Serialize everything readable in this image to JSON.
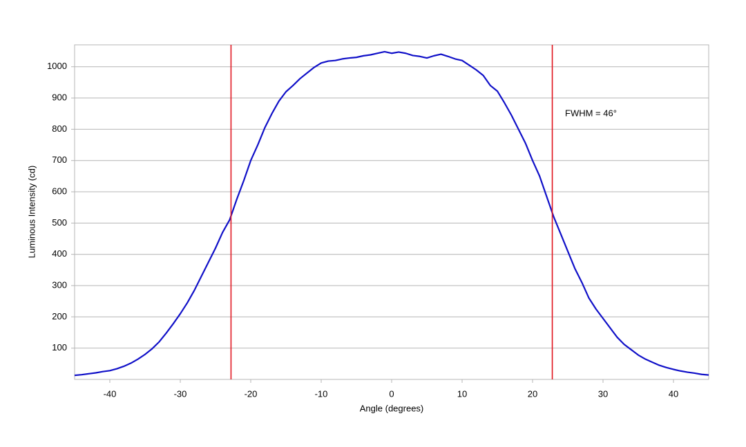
{
  "chart_data": {
    "type": "line",
    "xlabel": "Angle (degrees)",
    "ylabel": "Luminous Intensity (cd)",
    "annotation": "FWHM = 46°",
    "vlines": [
      -22.8,
      22.8
    ],
    "vline_color": "#e0141e",
    "xlim": [
      -45,
      45
    ],
    "xticks": [
      -40,
      -30,
      -20,
      -10,
      0,
      10,
      20,
      30,
      40
    ],
    "ylim": [
      0,
      1070
    ],
    "yticks": [
      100,
      200,
      300,
      400,
      500,
      600,
      700,
      800,
      900,
      1000
    ],
    "grid": true,
    "x": [
      -45,
      -44,
      -43,
      -42,
      -41,
      -40,
      -39,
      -38,
      -37,
      -36,
      -35,
      -34,
      -33,
      -32,
      -31,
      -30,
      -29,
      -28,
      -27,
      -26,
      -25,
      -24,
      -23,
      -22,
      -21,
      -20,
      -19,
      -18,
      -17,
      -16,
      -15,
      -14,
      -13,
      -12,
      -11,
      -10,
      -9,
      -8,
      -7,
      -6,
      -5,
      -4,
      -3,
      -2,
      -1,
      0,
      1,
      2,
      3,
      4,
      5,
      6,
      7,
      8,
      9,
      10,
      11,
      12,
      13,
      14,
      15,
      16,
      17,
      18,
      19,
      20,
      21,
      22,
      23,
      24,
      25,
      26,
      27,
      28,
      29,
      30,
      31,
      32,
      33,
      34,
      35,
      36,
      37,
      38,
      39,
      40,
      41,
      42,
      43,
      44,
      45
    ],
    "series": [
      {
        "name": "Intensity",
        "color": "#1010c8",
        "values": [
          13,
          15,
          18,
          21,
          25,
          28,
          34,
          42,
          52,
          65,
          80,
          98,
          120,
          148,
          178,
          210,
          245,
          285,
          330,
          375,
          420,
          470,
          510,
          575,
          635,
          700,
          750,
          805,
          850,
          890,
          920,
          940,
          962,
          980,
          998,
          1012,
          1018,
          1020,
          1025,
          1028,
          1030,
          1035,
          1038,
          1043,
          1048,
          1043,
          1047,
          1043,
          1036,
          1033,
          1028,
          1035,
          1040,
          1033,
          1025,
          1020,
          1005,
          990,
          972,
          940,
          922,
          885,
          845,
          800,
          755,
          700,
          650,
          585,
          520,
          465,
          410,
          355,
          310,
          260,
          225,
          195,
          165,
          135,
          112,
          95,
          78,
          65,
          55,
          45,
          38,
          32,
          27,
          23,
          20,
          16,
          14
        ]
      }
    ]
  }
}
